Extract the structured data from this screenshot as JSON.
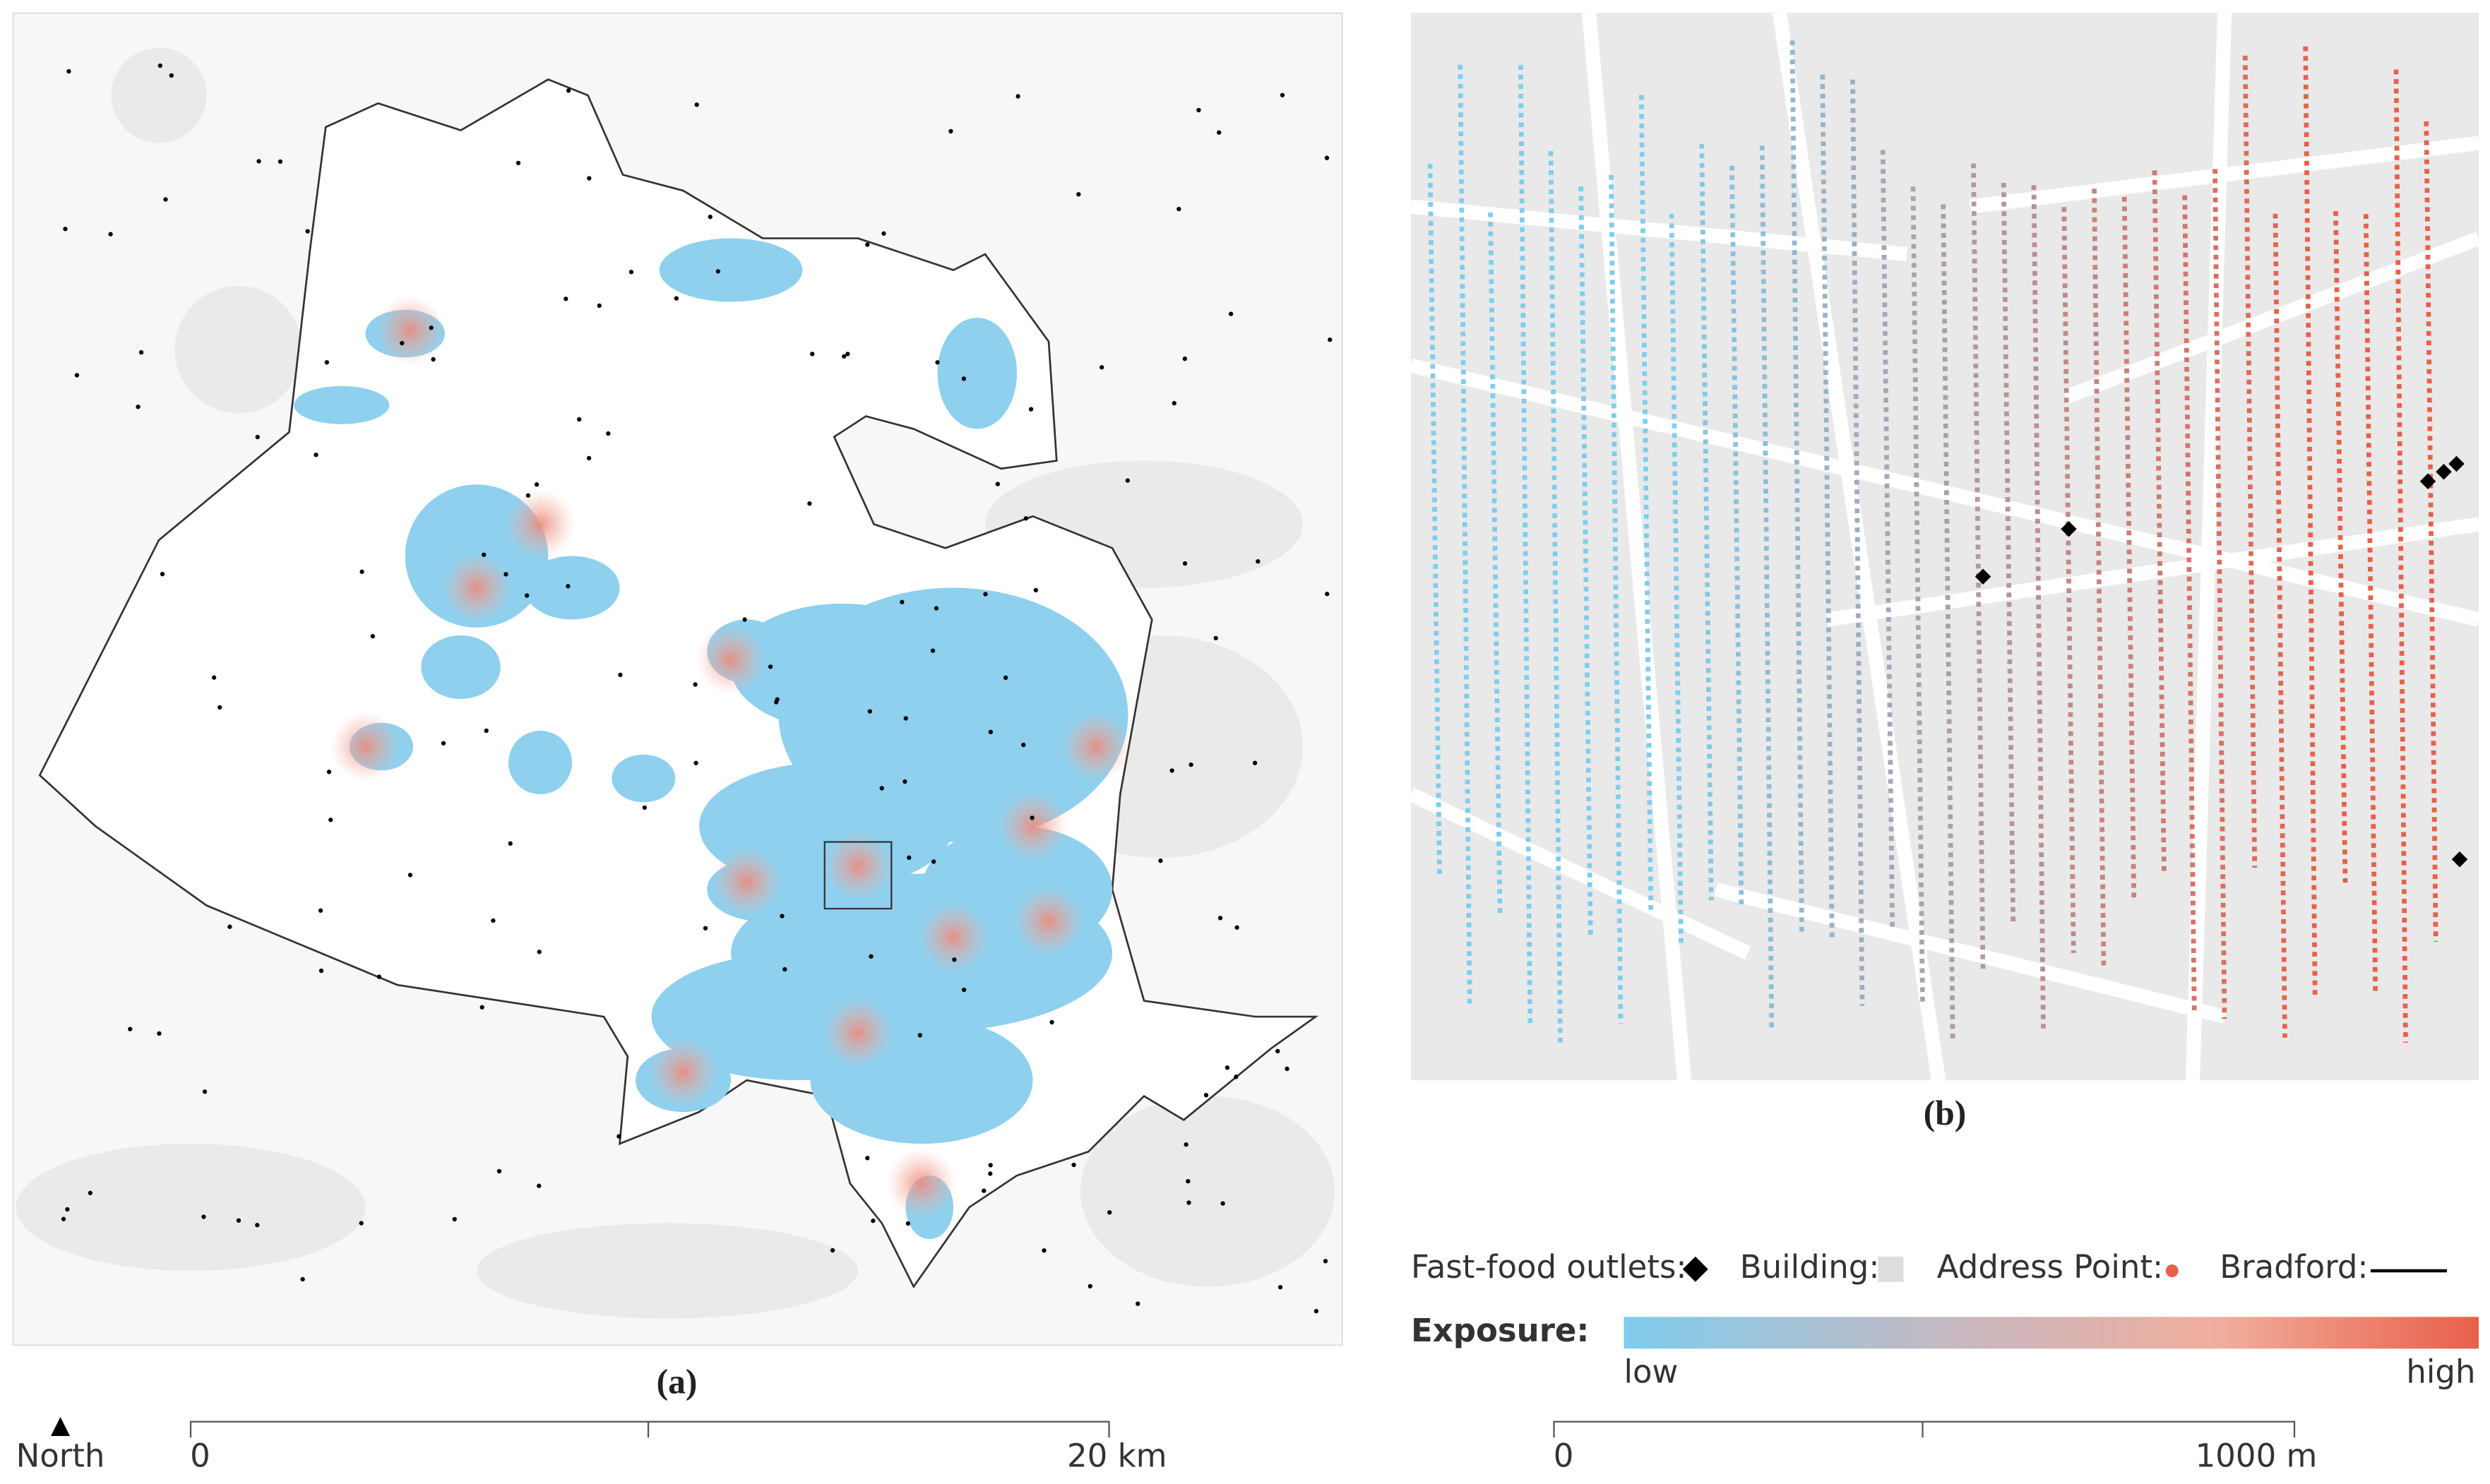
{
  "panels": [
    {
      "label": "(a)"
    },
    {
      "label": "(b)"
    }
  ],
  "north": "North",
  "scale_bars": [
    {
      "start": "0",
      "end": "20 km"
    },
    {
      "start": "0",
      "end": "1000 m"
    }
  ],
  "legend": {
    "items": [
      {
        "label": "Fast-food outlets:"
      },
      {
        "label": "Building:"
      },
      {
        "label": "Address Point:"
      },
      {
        "label": "Bradford:"
      }
    ],
    "exposure": {
      "title": "Exposure:",
      "low": "low",
      "high": "high"
    }
  }
}
